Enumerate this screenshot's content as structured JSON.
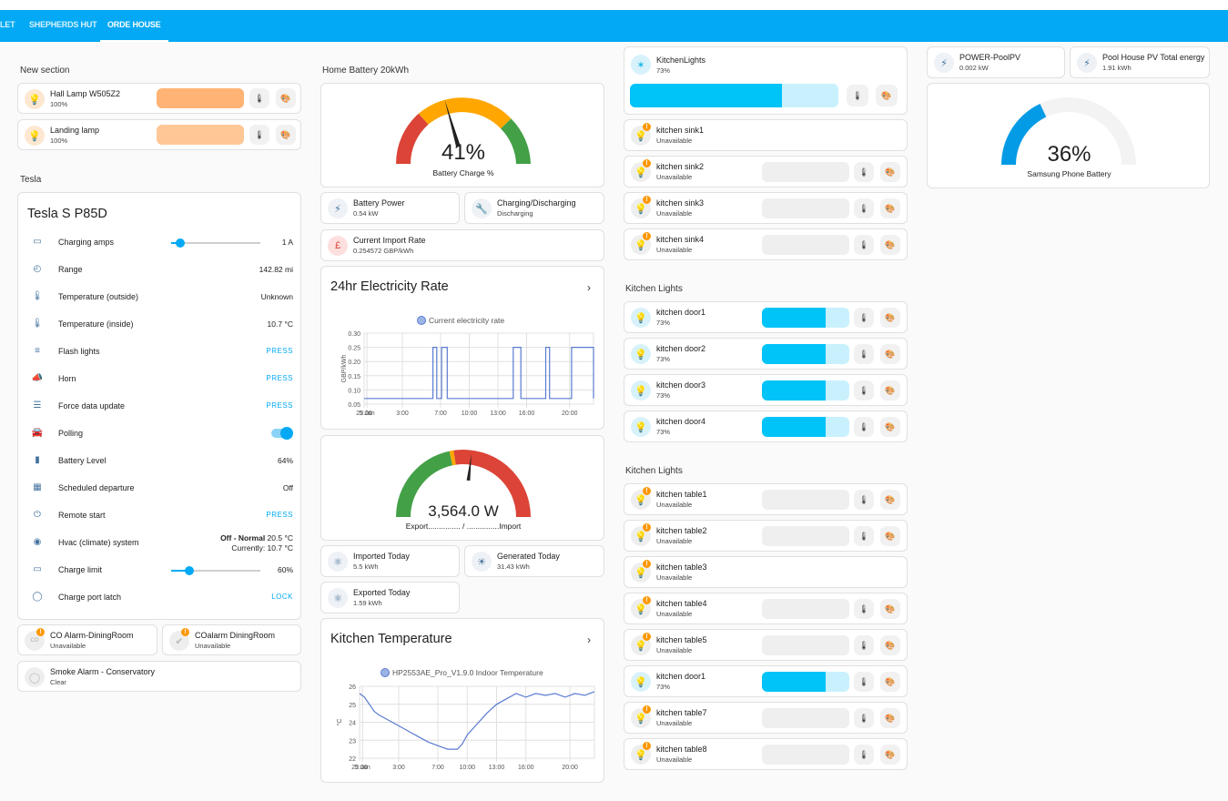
{
  "tabs": [
    "LET",
    "SHEPHERDS HUT",
    "ORDE HOUSE"
  ],
  "colors": {
    "header": "#03a9f4",
    "accent": "#03a9f4",
    "lamp": "#ffb169",
    "light_blue": "#00c3f7"
  },
  "col1": {
    "section1_title": "New section",
    "lamps": [
      {
        "name": "Hall Lamp W505Z2",
        "state": "100%"
      },
      {
        "name": "Landing lamp",
        "state": "100%"
      }
    ],
    "tesla_section": "Tesla",
    "tesla": {
      "title": "Tesla S P85D",
      "rows": [
        {
          "icon": "ev-charger-icon",
          "name": "Charging amps",
          "value": "1 A"
        },
        {
          "icon": "gauge-icon",
          "name": "Range",
          "value": "142.82 mi"
        },
        {
          "icon": "thermometer-icon",
          "name": "Temperature (outside)",
          "value": "Unknown"
        },
        {
          "icon": "thermometer-icon",
          "name": "Temperature (inside)",
          "value": "10.7 °C"
        },
        {
          "icon": "headlights-icon",
          "name": "Flash lights",
          "value": "PRESS"
        },
        {
          "icon": "horn-icon",
          "name": "Horn",
          "value": "PRESS"
        },
        {
          "icon": "database-icon",
          "name": "Force data update",
          "value": "PRESS"
        },
        {
          "icon": "car-wireless-icon",
          "name": "Polling",
          "value": ""
        },
        {
          "icon": "battery-icon",
          "name": "Battery Level",
          "value": "64%"
        },
        {
          "icon": "calendar-plus-icon",
          "name": "Scheduled departure",
          "value": "Off"
        },
        {
          "icon": "power-icon",
          "name": "Remote start",
          "value": "PRESS"
        },
        {
          "icon": "climate-icon",
          "name": "Hvac (climate) system",
          "value": "Off - Normal 20.5 °C",
          "value_bold": "Off - Normal",
          "value_rest": " 20.5 °C",
          "value2": "Currently: 10.7 °C"
        },
        {
          "icon": "ev-charger-icon",
          "name": "Charge limit",
          "value": "60%"
        },
        {
          "icon": "ev-plug-icon",
          "name": "Charge port latch",
          "value": "LOCK"
        }
      ],
      "charging_amps_level": 0.1,
      "charge_limit_level": 0.2
    },
    "alarms": [
      {
        "name": "CO Alarm-DiningRoom",
        "state": "Unavailable",
        "icon": "CO"
      },
      {
        "name": "COalarm DiningRoom",
        "state": "Unavailable"
      },
      {
        "name": "Smoke Alarm - Conservatory",
        "state": "Clear"
      }
    ]
  },
  "col2": {
    "section_title": "Home Battery 20kWh",
    "battery_gauge": {
      "value": "41%",
      "label": "Battery Charge %",
      "level": 0.41
    },
    "tiles": [
      {
        "name": "Battery Power",
        "state": "0.54 kW"
      },
      {
        "name": "Charging/Discharging",
        "state": "Discharging"
      },
      {
        "name": "Current Import Rate",
        "state": "0.254572 GBP/kWh"
      }
    ],
    "elec_rate_chart_title": "24hr Electricity Rate",
    "power_gauge": {
      "value": "3,564.0 W",
      "label": "Export............... / ...............Import"
    },
    "energy_tiles": [
      {
        "name": "Imported Today",
        "state": "5.5 kWh"
      },
      {
        "name": "Generated Today",
        "state": "31.43 kWh"
      },
      {
        "name": "Exported Today",
        "state": "1.59 kWh"
      }
    ],
    "kitchen_temp_title": "Kitchen Temperature"
  },
  "col3": {
    "kitchen_lights_card": {
      "name": "KitchenLights",
      "state": "73%",
      "level": 0.73
    },
    "sinks": [
      {
        "name": "kitchen sink1",
        "state": "Unavailable",
        "controls": false
      },
      {
        "name": "kitchen sink2",
        "state": "Unavailable",
        "controls": true
      },
      {
        "name": "kitchen sink3",
        "state": "Unavailable",
        "controls": true
      },
      {
        "name": "kitchen sink4",
        "state": "Unavailable",
        "controls": true
      }
    ],
    "section_doors": "Kitchen Lights",
    "doors": [
      {
        "name": "kitchen door1",
        "state": "73%"
      },
      {
        "name": "kitchen door2",
        "state": "73%"
      },
      {
        "name": "kitchen door3",
        "state": "73%"
      },
      {
        "name": "kitchen door4",
        "state": "73%"
      }
    ],
    "section_tables": "Kitchen Lights",
    "tables": [
      {
        "name": "kitchen table1",
        "state": "Unavailable",
        "on": false,
        "controls": true
      },
      {
        "name": "kitchen table2",
        "state": "Unavailable",
        "on": false,
        "controls": true
      },
      {
        "name": "kitchen table3",
        "state": "Unavailable",
        "on": false,
        "controls": false
      },
      {
        "name": "kitchen table4",
        "state": "Unavailable",
        "on": false,
        "controls": true
      },
      {
        "name": "kitchen table5",
        "state": "Unavailable",
        "on": false,
        "controls": true
      },
      {
        "name": "kitchen door1",
        "state": "73%",
        "on": true,
        "controls": true
      },
      {
        "name": "kitchen table7",
        "state": "Unavailable",
        "on": false,
        "controls": true
      },
      {
        "name": "kitchen table8",
        "state": "Unavailable",
        "on": false,
        "controls": true
      }
    ]
  },
  "col4": {
    "tiles": [
      {
        "name": "POWER-PoolPV",
        "state": "0.002 kW"
      },
      {
        "name": "Pool House PV Total energy",
        "state": "1.91 kWh"
      }
    ],
    "phone_gauge": {
      "value": "36%",
      "label": "Samsung Phone Battery",
      "level": 0.36
    }
  },
  "chart_data": [
    {
      "type": "line",
      "title": "24hr Electricity Rate",
      "legend": "Current electricity rate",
      "ylabel": "GBP/kWh",
      "yticks": [
        "0.30",
        "0.25",
        "0.20",
        "0.15",
        "0.10",
        "0.05"
      ],
      "xticks": [
        "23:00",
        "5 Jan",
        "3:00",
        "7:00",
        "10:00",
        "13:00",
        "16:00",
        "20:00"
      ],
      "ylim": [
        0.05,
        0.3
      ],
      "x_hours": [
        0,
        0,
        7.2,
        7.2,
        7.6,
        7.6,
        8.1,
        8.1,
        8.7,
        8.7,
        15.6,
        15.6,
        16.4,
        16.4,
        19.0,
        19.0,
        19.4,
        19.4,
        21.7,
        21.7,
        24,
        24
      ],
      "values": [
        0.07,
        0.07,
        0.07,
        0.25,
        0.25,
        0.07,
        0.07,
        0.25,
        0.25,
        0.07,
        0.07,
        0.25,
        0.25,
        0.07,
        0.07,
        0.25,
        0.25,
        0.07,
        0.07,
        0.25,
        0.25,
        0.07
      ]
    },
    {
      "type": "line",
      "title": "Kitchen Temperature",
      "legend": "HP2553AE_Pro_V1.9.0 Indoor Temperature",
      "ylabel": "°C",
      "yticks": [
        "26",
        "25",
        "24",
        "23",
        "22"
      ],
      "xticks": [
        "23:00",
        "5 Jan",
        "3:00",
        "7:00",
        "10:00",
        "13:00",
        "16:00",
        "20:00"
      ],
      "ylim": [
        22,
        26
      ],
      "x_hours": [
        0,
        0.5,
        1,
        1.5,
        2,
        3,
        4,
        5,
        6,
        7,
        7.5,
        8,
        9,
        10,
        10.5,
        11,
        12,
        13,
        14,
        15,
        16,
        17,
        18,
        19,
        20,
        21,
        22,
        23,
        24
      ],
      "values": [
        25.6,
        25.4,
        25.0,
        24.6,
        24.4,
        24.1,
        23.8,
        23.5,
        23.2,
        22.9,
        22.8,
        22.7,
        22.5,
        22.5,
        22.8,
        23.3,
        23.9,
        24.5,
        25.0,
        25.3,
        25.6,
        25.4,
        25.6,
        25.5,
        25.6,
        25.4,
        25.6,
        25.5,
        25.7
      ]
    },
    {
      "type": "gauge",
      "title": "Battery Charge %",
      "value": 41,
      "min": 0,
      "max": 100,
      "severity_colors": [
        "#db4437",
        "#ffa600",
        "#43a047"
      ]
    },
    {
      "type": "gauge",
      "title": "Samsung Phone Battery",
      "value": 36,
      "min": 0,
      "max": 100,
      "color": "#039be5"
    }
  ]
}
